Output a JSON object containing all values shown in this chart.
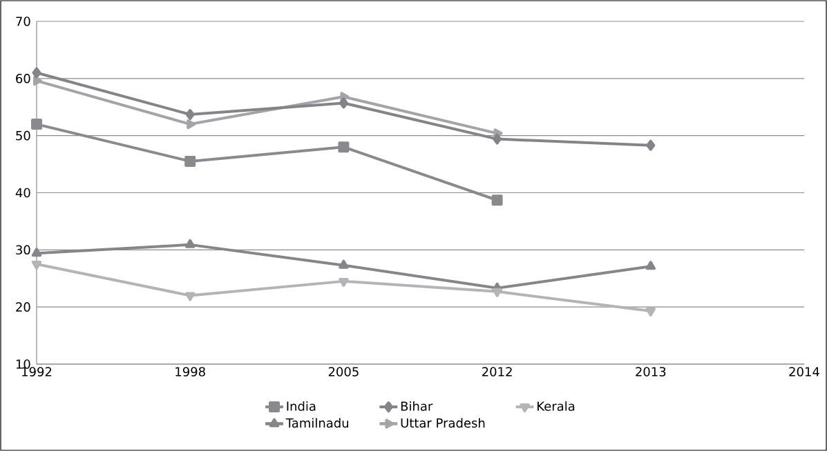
{
  "chart_data": {
    "type": "line",
    "categories": [
      "1992",
      "1998",
      "2005",
      "2012",
      "2013",
      "2014"
    ],
    "series": [
      {
        "name": "India",
        "color": "#8a8a8e",
        "marker": "square",
        "values": [
          52,
          45.5,
          48,
          38.7,
          null,
          null
        ]
      },
      {
        "name": "Bihar",
        "color": "#848488",
        "marker": "diamond",
        "values": [
          61,
          53.7,
          55.7,
          49.4,
          48.3,
          null
        ]
      },
      {
        "name": "Kerala",
        "color": "#b4b4b8",
        "marker": "triangle-down",
        "values": [
          27.5,
          22,
          24.5,
          22.7,
          19.3,
          null
        ]
      },
      {
        "name": "Tamilnadu",
        "color": "#86868a",
        "marker": "triangle",
        "values": [
          29.4,
          30.9,
          27.3,
          23.3,
          27.1,
          null
        ]
      },
      {
        "name": "Uttar Pradesh",
        "color": "#a4a4a8",
        "marker": "triangle-right",
        "values": [
          59.6,
          52,
          56.8,
          50.4,
          null,
          null
        ]
      }
    ],
    "ylim": [
      10,
      70
    ],
    "yticks": [
      10,
      20,
      30,
      40,
      50,
      60,
      70
    ],
    "grid": "y",
    "legend": "bottom",
    "line_style": "solid"
  }
}
